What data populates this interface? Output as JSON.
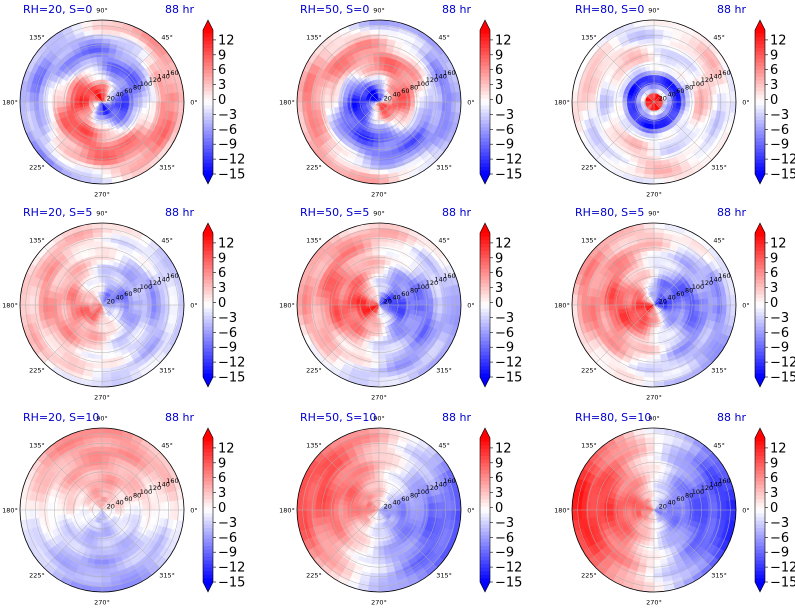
{
  "figure": {
    "time_label": "88 hr"
  },
  "colorbar": {
    "ticks": [
      "12",
      "9",
      "6",
      "3",
      "0",
      "−3",
      "−6",
      "−9",
      "−12",
      "−15"
    ],
    "colormap": "bwr",
    "colors": {
      "low": "#0000ff",
      "mid": "#ffffff",
      "high": "#ff0000"
    },
    "extend": "both"
  },
  "chart_data": [
    {
      "type": "heatmap",
      "projection": "polar",
      "title": "RH=20, S=0",
      "time": "88 hr",
      "angle_ticks": [
        "0°",
        "45°",
        "90°",
        "135°",
        "180°",
        "225°",
        "270°",
        "315°"
      ],
      "radial_ticks": [
        "20",
        "40",
        "60",
        "80",
        "100",
        "120",
        "140",
        "160"
      ],
      "range": [
        -15,
        14
      ],
      "pattern": {
        "kind": "spiral",
        "amp": 13,
        "phase": 0,
        "offset": 0
      }
    },
    {
      "type": "heatmap",
      "projection": "polar",
      "title": "RH=50, S=0",
      "time": "88 hr",
      "angle_ticks": [
        "0°",
        "45°",
        "90°",
        "135°",
        "180°",
        "225°",
        "270°",
        "315°"
      ],
      "radial_ticks": [
        "20",
        "40",
        "60",
        "80",
        "100",
        "120",
        "140",
        "160"
      ],
      "range": [
        -15,
        14
      ],
      "pattern": {
        "kind": "spiral",
        "amp": 13,
        "phase": 3.4,
        "offset": -3
      }
    },
    {
      "type": "heatmap",
      "projection": "polar",
      "title": "RH=80, S=0",
      "time": "88 hr",
      "angle_ticks": [
        "0°",
        "45°",
        "90°",
        "135°",
        "180°",
        "225°",
        "270°",
        "315°"
      ],
      "radial_ticks": [
        "20",
        "40",
        "60",
        "80",
        "100",
        "120",
        "140",
        "160"
      ],
      "range": [
        -15,
        14
      ],
      "pattern": {
        "kind": "core",
        "amp": 13,
        "phase": 0,
        "offset": -2
      }
    },
    {
      "type": "heatmap",
      "projection": "polar",
      "title": "RH=20, S=5",
      "time": "88 hr",
      "angle_ticks": [
        "0°",
        "45°",
        "90°",
        "135°",
        "180°",
        "225°",
        "270°",
        "315°"
      ],
      "radial_ticks": [
        "20",
        "40",
        "60",
        "80",
        "100",
        "120",
        "140",
        "160"
      ],
      "range": [
        -15,
        14
      ],
      "pattern": {
        "kind": "dipole",
        "amp": 8,
        "phase": 3.9,
        "offset": 0
      }
    },
    {
      "type": "heatmap",
      "projection": "polar",
      "title": "RH=50, S=5",
      "time": "88 hr",
      "angle_ticks": [
        "0°",
        "45°",
        "90°",
        "135°",
        "180°",
        "225°",
        "270°",
        "315°"
      ],
      "radial_ticks": [
        "20",
        "40",
        "60",
        "80",
        "100",
        "120",
        "140",
        "160"
      ],
      "range": [
        -15,
        14
      ],
      "pattern": {
        "kind": "dipole",
        "amp": 12,
        "phase": 3.6,
        "offset": 0
      }
    },
    {
      "type": "heatmap",
      "projection": "polar",
      "title": "RH=80, S=5",
      "time": "88 hr",
      "angle_ticks": [
        "0°",
        "45°",
        "90°",
        "135°",
        "180°",
        "225°",
        "270°",
        "315°"
      ],
      "radial_ticks": [
        "20",
        "40",
        "60",
        "80",
        "100",
        "120",
        "140",
        "160"
      ],
      "range": [
        -15,
        14
      ],
      "pattern": {
        "kind": "dipole",
        "amp": 12,
        "phase": 3.8,
        "offset": 0
      }
    },
    {
      "type": "heatmap",
      "projection": "polar",
      "title": "RH=20, S=10",
      "time": "88 hr",
      "angle_ticks": [
        "0°",
        "45°",
        "90°",
        "135°",
        "180°",
        "225°",
        "270°",
        "315°"
      ],
      "radial_ticks": [
        "20",
        "40",
        "60",
        "80",
        "100",
        "120",
        "140",
        "160"
      ],
      "range": [
        -15,
        14
      ],
      "pattern": {
        "kind": "halves",
        "amp": 6,
        "phase": 1.6,
        "offset": 0
      }
    },
    {
      "type": "heatmap",
      "projection": "polar",
      "title": "RH=50, S=10",
      "time": "88 hr",
      "angle_ticks": [
        "0°",
        "45°",
        "90°",
        "135°",
        "180°",
        "225°",
        "270°",
        "315°"
      ],
      "radial_ticks": [
        "20",
        "40",
        "60",
        "80",
        "100",
        "120",
        "140",
        "160"
      ],
      "range": [
        -15,
        14
      ],
      "pattern": {
        "kind": "halves",
        "amp": 10,
        "phase": 2.8,
        "offset": 0
      }
    },
    {
      "type": "heatmap",
      "projection": "polar",
      "title": "RH=80, S=10",
      "time": "88 hr",
      "angle_ticks": [
        "0°",
        "45°",
        "90°",
        "135°",
        "180°",
        "225°",
        "270°",
        "315°"
      ],
      "radial_ticks": [
        "20",
        "40",
        "60",
        "80",
        "100",
        "120",
        "140",
        "160"
      ],
      "range": [
        -15,
        14
      ],
      "pattern": {
        "kind": "halves",
        "amp": 12,
        "phase": 3.14,
        "offset": 0
      }
    }
  ]
}
